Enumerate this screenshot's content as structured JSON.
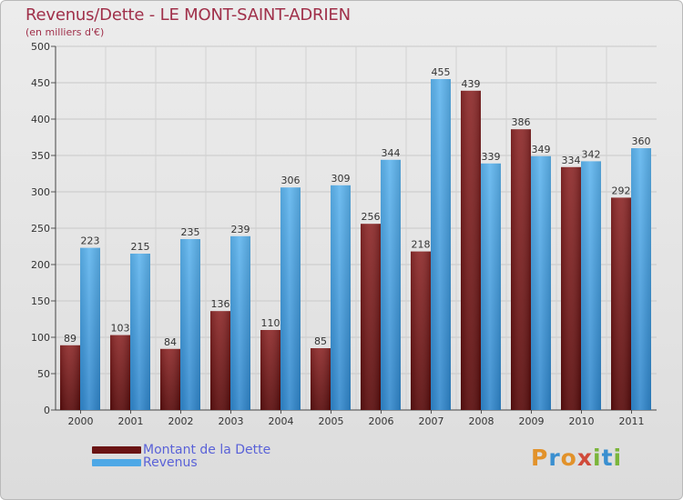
{
  "chart_data": {
    "type": "bar",
    "title": "Revenus/Dette - LE MONT-SAINT-ADRIEN",
    "subtitle": "(en milliers d'€)",
    "categories": [
      "2000",
      "2001",
      "2002",
      "2003",
      "2004",
      "2005",
      "2006",
      "2007",
      "2008",
      "2009",
      "2010",
      "2011"
    ],
    "series": [
      {
        "name": "Montant de la Dette",
        "color": "#7a1b1b",
        "values": [
          89,
          103,
          84,
          136,
          110,
          85,
          256,
          218,
          439,
          386,
          334,
          292
        ]
      },
      {
        "name": "Revenus",
        "color": "#4ea8e6",
        "values": [
          223,
          215,
          235,
          239,
          306,
          309,
          344,
          455,
          339,
          349,
          342,
          360
        ]
      }
    ],
    "ylim": [
      0,
      500
    ],
    "yticks": [
      0,
      50,
      100,
      150,
      200,
      250,
      300,
      350,
      400,
      450,
      500
    ],
    "grid": true,
    "legend_position": "bottom-left",
    "xlabel": "",
    "ylabel": ""
  },
  "logo": {
    "text": "Proxiti"
  }
}
